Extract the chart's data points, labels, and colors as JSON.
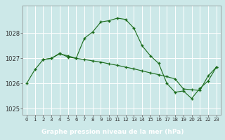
{
  "series1": {
    "x": [
      0,
      1,
      2,
      3,
      4,
      5,
      6,
      7,
      8,
      9,
      10,
      11,
      12,
      13,
      14,
      15,
      16,
      17,
      18,
      19,
      20,
      21,
      22,
      23
    ],
    "y": [
      1026.0,
      1026.55,
      1026.95,
      1027.0,
      1027.2,
      1027.05,
      1027.0,
      1027.8,
      1028.05,
      1028.45,
      1028.5,
      1028.6,
      1028.55,
      1028.2,
      1027.5,
      1027.1,
      1026.8,
      1026.0,
      1025.65,
      1025.7,
      1025.4,
      1025.8,
      1026.1,
      1026.65
    ]
  },
  "series2": {
    "x": [
      2,
      3,
      4,
      5,
      6,
      7,
      8,
      9,
      10,
      11,
      12,
      13,
      14,
      15,
      16,
      17,
      18,
      19,
      20,
      21,
      22,
      23
    ],
    "y": [
      1026.95,
      1027.0,
      1027.18,
      1027.1,
      1027.0,
      1026.95,
      1026.9,
      1026.85,
      1026.78,
      1026.72,
      1026.65,
      1026.58,
      1026.5,
      1026.42,
      1026.35,
      1026.27,
      1026.18,
      1025.78,
      1025.75,
      1025.72,
      1026.3,
      1026.65
    ]
  },
  "bg_color": "#cce8e8",
  "grid_color": "#ffffff",
  "line_color": "#1a6b1a",
  "marker": "+",
  "xlabel": "Graphe pression niveau de la mer (hPa)",
  "xlabel_bg": "#2d7a2d",
  "xlabel_color": "#ffffff",
  "ylim": [
    1024.75,
    1029.1
  ],
  "xlim": [
    -0.5,
    23.5
  ],
  "yticks": [
    1025,
    1026,
    1027,
    1028
  ],
  "xticks": [
    0,
    1,
    2,
    3,
    4,
    5,
    6,
    7,
    8,
    9,
    10,
    11,
    12,
    13,
    14,
    15,
    16,
    17,
    18,
    19,
    20,
    21,
    22,
    23
  ]
}
